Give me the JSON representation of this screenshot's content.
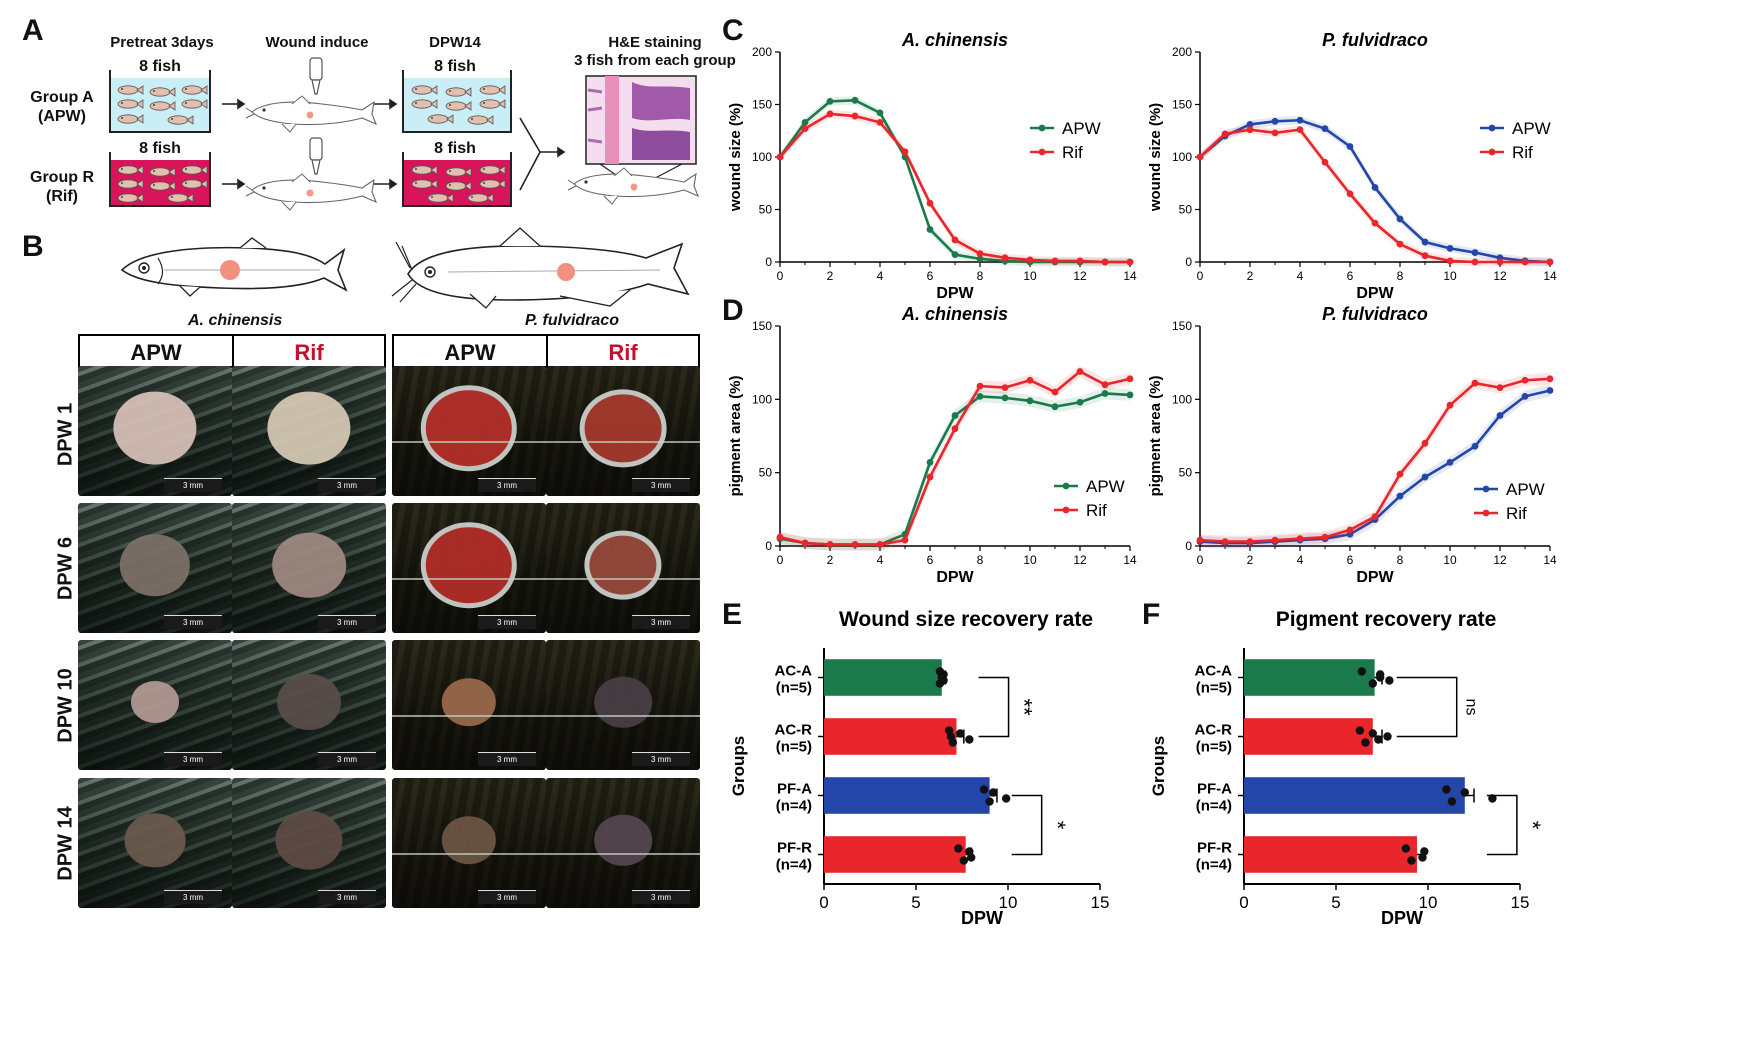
{
  "panels": {
    "A": "A",
    "B": "B",
    "C": "C",
    "D": "D",
    "E": "E",
    "F": "F"
  },
  "panelA": {
    "step1": "Pretreat 3days",
    "step2": "Wound induce",
    "step3": "DPW14",
    "step4_line1": "H&E staining",
    "step4_line2": "3 fish from each group",
    "tank_label": "8 fish",
    "groupA_line1": "Group A",
    "groupA_line2": "(APW)",
    "groupR_line1": "Group R",
    "groupR_line2": "(Rif)",
    "colors": {
      "apw_tank": "#c9eef5",
      "rif_tank": "#d8145a"
    }
  },
  "panelB": {
    "species1": "A. chinensis",
    "species2": "P. fulvidraco",
    "col_headers": [
      "APW",
      "Rif",
      "APW",
      "Rif"
    ],
    "rows": [
      "DPW 1",
      "DPW 6",
      "DPW 10",
      "DPW 14"
    ],
    "scale_label": "3 mm"
  },
  "colors": {
    "apw_green": "#1a7a4c",
    "rif_red": "#e8262b",
    "apw_blue": "#2346a8"
  },
  "chart_data": [
    {
      "id": "C1",
      "type": "line",
      "title": "A. chinensis",
      "xlabel": "DPW",
      "ylabel": "wound size (%)",
      "xlim": [
        0,
        14
      ],
      "ylim": [
        0,
        200
      ],
      "xticks": [
        "0",
        "2",
        "4",
        "6",
        "8",
        "10",
        "12",
        "14"
      ],
      "yticks": [
        "0",
        "50",
        "100",
        "150",
        "200"
      ],
      "series": [
        {
          "name": "APW",
          "color": "#1a7a4c",
          "x": [
            0,
            1,
            2,
            3,
            4,
            5,
            6,
            7,
            8,
            9,
            10,
            11,
            12,
            13,
            14
          ],
          "y": [
            100,
            133,
            153,
            154,
            142,
            100,
            31,
            7,
            3,
            1,
            0,
            0,
            0,
            0,
            0
          ]
        },
        {
          "name": "Rif",
          "color": "#e8262b",
          "x": [
            0,
            1,
            2,
            3,
            4,
            5,
            6,
            7,
            8,
            9,
            10,
            11,
            12,
            13,
            14
          ],
          "y": [
            100,
            127,
            141,
            139,
            133,
            105,
            56,
            21,
            8,
            4,
            2,
            1,
            1,
            0,
            0
          ]
        }
      ]
    },
    {
      "id": "C2",
      "type": "line",
      "title": "P. fulvidraco",
      "xlabel": "DPW",
      "ylabel": "wound size (%)",
      "xlim": [
        0,
        14
      ],
      "ylim": [
        0,
        200
      ],
      "xticks": [
        "0",
        "2",
        "4",
        "6",
        "8",
        "10",
        "12",
        "14"
      ],
      "yticks": [
        "0",
        "50",
        "100",
        "150",
        "200"
      ],
      "series": [
        {
          "name": "APW",
          "color": "#2346a8",
          "x": [
            0,
            1,
            2,
            3,
            4,
            5,
            6,
            7,
            8,
            9,
            10,
            11,
            12,
            13,
            14
          ],
          "y": [
            100,
            120,
            131,
            134,
            135,
            127,
            110,
            71,
            41,
            19,
            13,
            9,
            4,
            1,
            0
          ]
        },
        {
          "name": "Rif",
          "color": "#e8262b",
          "x": [
            0,
            1,
            2,
            3,
            4,
            5,
            6,
            7,
            8,
            9,
            10,
            11,
            12,
            13,
            14
          ],
          "y": [
            100,
            122,
            126,
            123,
            126,
            95,
            65,
            37,
            17,
            6,
            1,
            0,
            0,
            0,
            0
          ]
        }
      ]
    },
    {
      "id": "D1",
      "type": "line",
      "title": "A. chinensis",
      "xlabel": "DPW",
      "ylabel": "pigment area (%)",
      "xlim": [
        0,
        14
      ],
      "ylim": [
        0,
        150
      ],
      "xticks": [
        "0",
        "2",
        "4",
        "6",
        "8",
        "10",
        "12",
        "14"
      ],
      "yticks": [
        "0",
        "50",
        "100",
        "150"
      ],
      "series": [
        {
          "name": "APW",
          "color": "#1a7a4c",
          "x": [
            0,
            1,
            2,
            3,
            4,
            5,
            6,
            7,
            8,
            9,
            10,
            11,
            12,
            13,
            14
          ],
          "y": [
            5,
            2,
            1,
            1,
            1,
            8,
            57,
            89,
            102,
            101,
            99,
            95,
            98,
            104,
            103
          ]
        },
        {
          "name": "Rif",
          "color": "#e8262b",
          "x": [
            0,
            1,
            2,
            3,
            4,
            5,
            6,
            7,
            8,
            9,
            10,
            11,
            12,
            13,
            14
          ],
          "y": [
            6,
            2,
            1,
            1,
            1,
            4,
            47,
            80,
            109,
            108,
            113,
            105,
            119,
            110,
            114
          ]
        }
      ]
    },
    {
      "id": "D2",
      "type": "line",
      "title": "P. fulvidraco",
      "xlabel": "DPW",
      "ylabel": "pigment area (%)",
      "xlim": [
        0,
        14
      ],
      "ylim": [
        0,
        150
      ],
      "xticks": [
        "0",
        "2",
        "4",
        "6",
        "8",
        "10",
        "12",
        "14"
      ],
      "yticks": [
        "0",
        "50",
        "100",
        "150"
      ],
      "series": [
        {
          "name": "APW",
          "color": "#2346a8",
          "x": [
            0,
            1,
            2,
            3,
            4,
            5,
            6,
            7,
            8,
            9,
            10,
            11,
            12,
            13,
            14
          ],
          "y": [
            3,
            2,
            2,
            3,
            4,
            5,
            8,
            18,
            34,
            47,
            57,
            68,
            89,
            102,
            106
          ]
        },
        {
          "name": "Rif",
          "color": "#e8262b",
          "x": [
            0,
            1,
            2,
            3,
            4,
            5,
            6,
            7,
            8,
            9,
            10,
            11,
            12,
            13,
            14
          ],
          "y": [
            4,
            3,
            3,
            4,
            5,
            6,
            11,
            20,
            49,
            70,
            96,
            111,
            108,
            113,
            114
          ]
        }
      ]
    },
    {
      "id": "E",
      "type": "bar",
      "orientation": "horizontal",
      "title": "Wound size recovery rate",
      "xlabel": "DPW",
      "ylabel": "Groups",
      "xlim": [
        0,
        15
      ],
      "xticks": [
        "0",
        "5",
        "10",
        "15"
      ],
      "categories": [
        "AC-A\n(n=5)",
        "AC-R\n(n=5)",
        "PF-A\n(n=4)",
        "PF-R\n(n=4)"
      ],
      "cat_line1": [
        "AC-A",
        "AC-R",
        "PF-A",
        "PF-R"
      ],
      "cat_line2": [
        "(n=5)",
        "(n=5)",
        "(n=4)",
        "(n=4)"
      ],
      "values": [
        6.4,
        7.2,
        9.0,
        7.7
      ],
      "errors": [
        0.2,
        0.4,
        0.4,
        0.3
      ],
      "colors": [
        "#1a7a4c",
        "#e8262b",
        "#2346a8",
        "#e8262b"
      ],
      "points": [
        [
          6.3,
          6.3,
          6.5,
          6.5,
          6.4
        ],
        [
          6.8,
          7.0,
          7.4,
          7.9,
          6.9
        ],
        [
          8.7,
          9.0,
          9.2,
          9.9
        ],
        [
          7.3,
          7.6,
          7.9,
          8.0
        ]
      ],
      "significance": [
        {
          "pair": [
            0,
            1
          ],
          "label": "**"
        },
        {
          "pair": [
            2,
            3
          ],
          "label": "*"
        }
      ]
    },
    {
      "id": "F",
      "type": "bar",
      "orientation": "horizontal",
      "title": "Pigment recovery rate",
      "xlabel": "DPW",
      "ylabel": "Groups",
      "xlim": [
        0,
        15
      ],
      "xticks": [
        "0",
        "5",
        "10",
        "15"
      ],
      "categories": [
        "AC-A\n(n=5)",
        "AC-R\n(n=5)",
        "PF-A\n(n=4)",
        "PF-R\n(n=4)"
      ],
      "cat_line1": [
        "AC-A",
        "AC-R",
        "PF-A",
        "PF-R"
      ],
      "cat_line2": [
        "(n=5)",
        "(n=5)",
        "(n=4)",
        "(n=4)"
      ],
      "values": [
        7.1,
        7.0,
        12.0,
        9.4
      ],
      "errors": [
        0.4,
        0.5,
        0.5,
        0.3
      ],
      "colors": [
        "#1a7a4c",
        "#e8262b",
        "#2346a8",
        "#e8262b"
      ],
      "points": [
        [
          6.4,
          7.0,
          7.4,
          7.9,
          7.4
        ],
        [
          6.3,
          6.6,
          7.0,
          7.3,
          7.8
        ],
        [
          11.0,
          11.3,
          12.0,
          13.5
        ],
        [
          8.8,
          9.1,
          9.8,
          9.7
        ]
      ],
      "significance": [
        {
          "pair": [
            0,
            1
          ],
          "label": "ns"
        },
        {
          "pair": [
            2,
            3
          ],
          "label": "*"
        }
      ]
    }
  ]
}
